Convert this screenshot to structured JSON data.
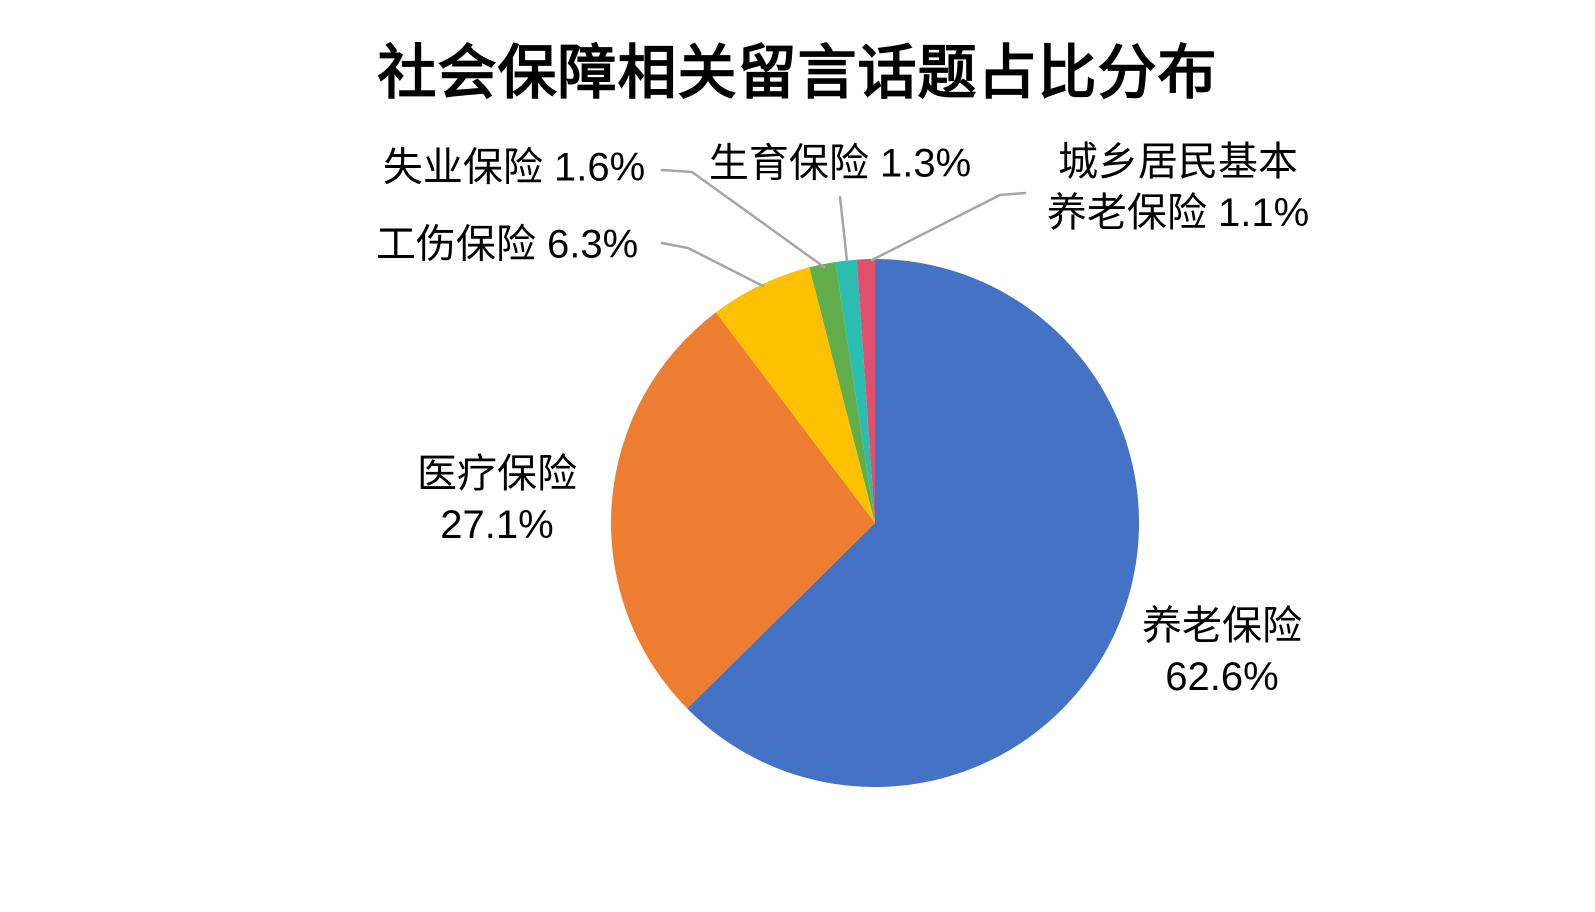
{
  "title": "社会保障相关留言话题占比分布",
  "chart_data": {
    "type": "pie",
    "title": "社会保障相关留言话题占比分布",
    "start_angle_deg": 0,
    "direction": "clockwise",
    "legend": "none",
    "background": "#FFFFFF",
    "leader_line_color": "#A6A6A6",
    "slices": [
      {
        "id": "pension",
        "label": "养老保险",
        "value_pct": 62.6,
        "color": "#4472C4"
      },
      {
        "id": "medical",
        "label": "医疗保险",
        "value_pct": 27.1,
        "color": "#ED7D31"
      },
      {
        "id": "work_injury",
        "label": "工伤保险",
        "value_pct": 6.3,
        "color": "#FFC000"
      },
      {
        "id": "unemployment",
        "label": "失业保险",
        "value_pct": 1.6,
        "color": "#61AE4B"
      },
      {
        "id": "maternity",
        "label": "生育保险",
        "value_pct": 1.3,
        "color": "#2BBDAF"
      },
      {
        "id": "urban_rural",
        "label": "城乡居民基本养老保险",
        "value_pct": 1.1,
        "color": "#E0506A"
      }
    ]
  },
  "labels": {
    "pension": "养老保险\n62.6%",
    "medical": "医疗保险\n27.1%",
    "work_injury": "工伤保险 6.3%",
    "unemployment": "失业保险 1.6%",
    "maternity": "生育保险 1.3%",
    "urban_rural": "城乡居民基本\n养老保险 1.1%"
  }
}
